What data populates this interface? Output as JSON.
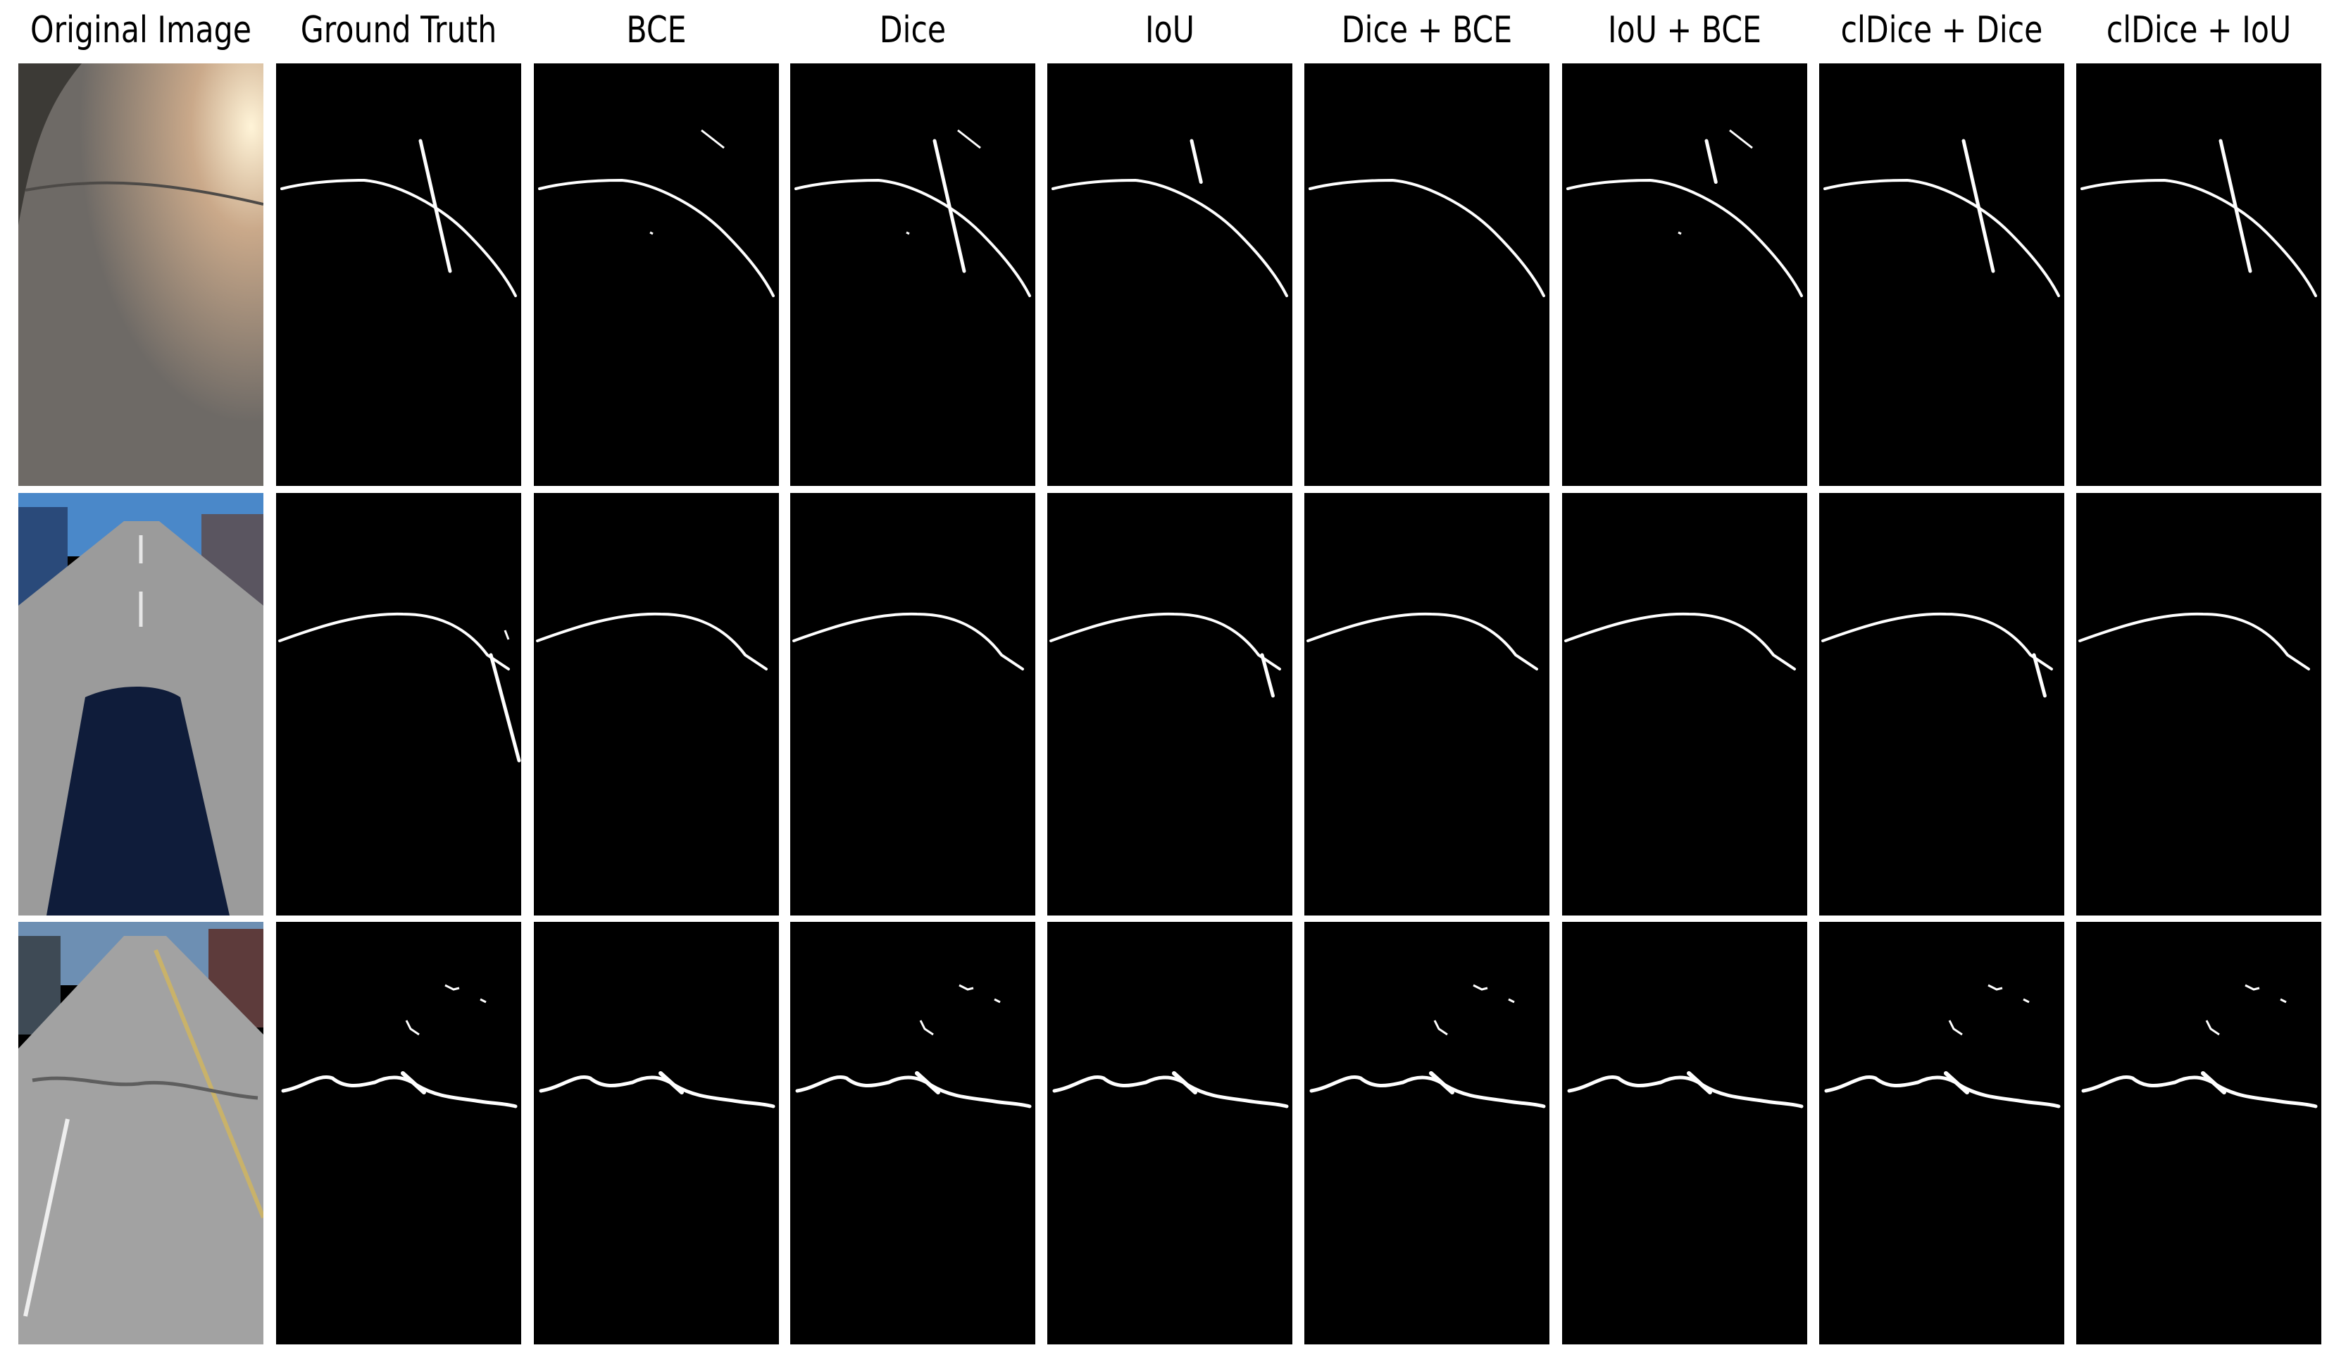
{
  "columns": [
    "Original Image",
    "Ground Truth",
    "BCE",
    "Dice",
    "IoU",
    "Dice + BCE",
    "IoU + BCE",
    "clDice + Dice",
    "clDice + IoU"
  ],
  "rows": [
    {
      "scene": "road-glare"
    },
    {
      "scene": "road-lane-shadow"
    },
    {
      "scene": "road-cracked"
    }
  ],
  "colors": {
    "background": "#ffffff",
    "mask_background": "#000000",
    "crack": "#ffffff"
  }
}
